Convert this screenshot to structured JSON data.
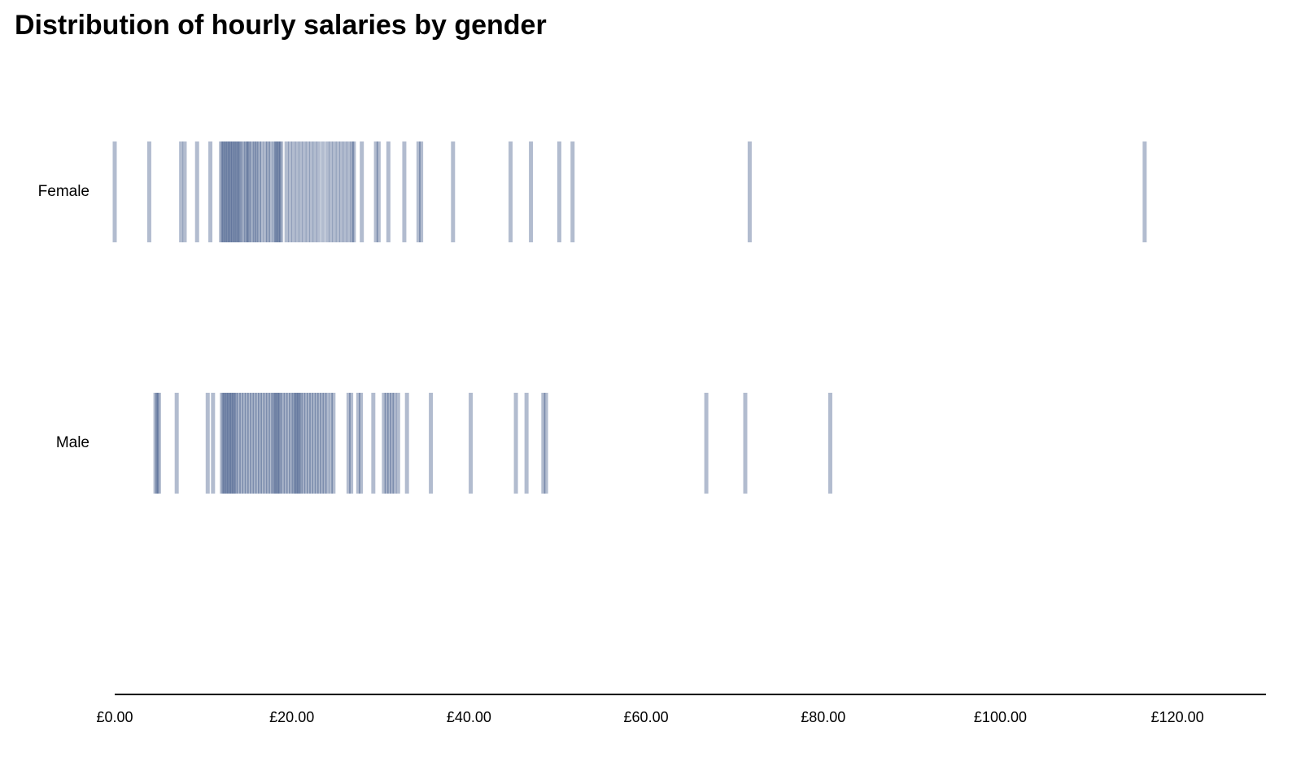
{
  "chart_data": {
    "type": "strip",
    "title": "Distribution of hourly salaries by gender",
    "categories": [
      "Female",
      "Male"
    ],
    "color": "#002060",
    "opacity": 0.3,
    "values": [
      [
        0,
        3.9,
        7.5,
        7.9,
        9.3,
        10.8,
        12.0,
        12.2,
        12.4,
        12.6,
        12.8,
        13.0,
        13.2,
        13.4,
        13.6,
        13.8,
        14.0,
        14.2,
        14.5,
        14.8,
        15.0,
        15.2,
        15.5,
        15.8,
        16.0,
        16.3,
        16.6,
        17.0,
        17.3,
        17.6,
        18.0,
        18.2,
        18.4,
        18.6,
        18.8,
        19.4,
        19.8,
        20.2,
        20.6,
        21.0,
        21.4,
        21.8,
        22.2,
        22.6,
        23.0,
        23.5,
        24.0,
        24.4,
        24.8,
        25.2,
        25.6,
        26.0,
        26.4,
        26.8,
        27.0,
        27.9,
        29.5,
        29.8,
        30.9,
        32.7,
        34.3,
        34.6,
        38.2,
        44.7,
        47.0,
        50.2,
        51.7,
        71.7,
        116.3
      ],
      [
        4.6,
        4.8,
        5.0,
        7.0,
        10.5,
        11.1,
        12.1,
        12.3,
        12.5,
        12.7,
        12.9,
        13.1,
        13.3,
        13.5,
        13.7,
        14.0,
        14.3,
        14.6,
        14.9,
        15.2,
        15.5,
        15.8,
        16.1,
        16.4,
        16.7,
        17.0,
        17.3,
        17.6,
        17.9,
        18.1,
        18.3,
        18.5,
        18.7,
        19.0,
        19.3,
        19.6,
        19.9,
        20.2,
        20.4,
        20.6,
        20.8,
        21.0,
        21.3,
        21.6,
        21.9,
        22.2,
        22.5,
        22.8,
        23.1,
        23.4,
        23.7,
        24.0,
        24.4,
        24.7,
        26.4,
        26.7,
        27.5,
        27.8,
        29.2,
        30.4,
        30.7,
        31.0,
        31.3,
        31.6,
        32.0,
        33.0,
        35.7,
        40.2,
        45.3,
        46.5,
        48.4,
        48.7,
        66.8,
        71.2,
        80.8
      ]
    ],
    "xlim": [
      0,
      130
    ],
    "xticks": [
      {
        "value": 0,
        "label": "£0.00"
      },
      {
        "value": 20,
        "label": "£20.00"
      },
      {
        "value": 40,
        "label": "£40.00"
      },
      {
        "value": 60,
        "label": "£60.00"
      },
      {
        "value": 80,
        "label": "£80.00"
      },
      {
        "value": 100,
        "label": "£100.00"
      },
      {
        "value": 120,
        "label": "£120.00"
      }
    ]
  }
}
